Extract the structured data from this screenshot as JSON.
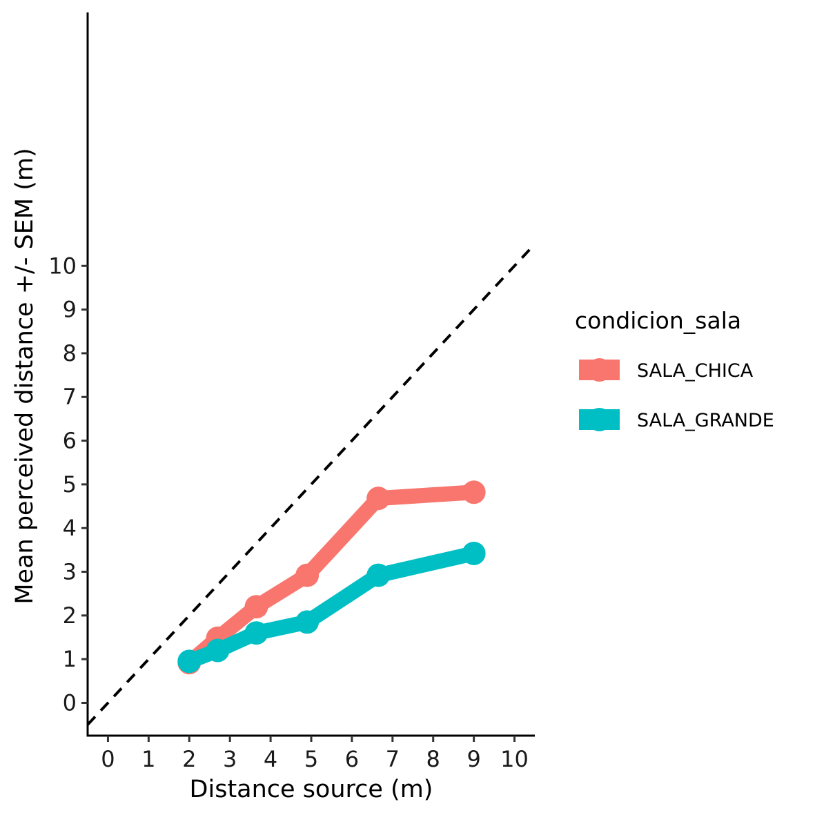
{
  "chart_data": {
    "type": "line",
    "xlabel": "Distance source (m)",
    "ylabel": "Mean perceived distance +/- SEM (m)",
    "x_ticks": [
      0,
      1,
      2,
      3,
      4,
      5,
      6,
      7,
      8,
      9,
      10
    ],
    "y_ticks": [
      0,
      1,
      2,
      3,
      4,
      5,
      6,
      7,
      8,
      9,
      10
    ],
    "xlim": [
      -0.5,
      10.5
    ],
    "ylim": [
      -0.75,
      15.8
    ],
    "grid": false,
    "reference_line": {
      "style": "dashed",
      "color": "#000000",
      "x": [
        -0.5,
        10.5
      ],
      "y": [
        -0.5,
        10.5
      ]
    },
    "legend": {
      "title": "condicion_sala",
      "placement": "right"
    },
    "series": [
      {
        "name": "SALA_CHICA",
        "color": "#F8766D",
        "x": [
          2.0,
          2.7,
          3.65,
          4.9,
          6.65,
          9.0
        ],
        "y": [
          0.92,
          1.48,
          2.2,
          2.92,
          4.68,
          4.82
        ]
      },
      {
        "name": "SALA_GRANDE",
        "color": "#00BFC4",
        "x": [
          2.0,
          2.7,
          3.65,
          4.9,
          6.65,
          9.0
        ],
        "y": [
          0.95,
          1.2,
          1.6,
          1.85,
          2.92,
          3.42
        ]
      }
    ]
  }
}
